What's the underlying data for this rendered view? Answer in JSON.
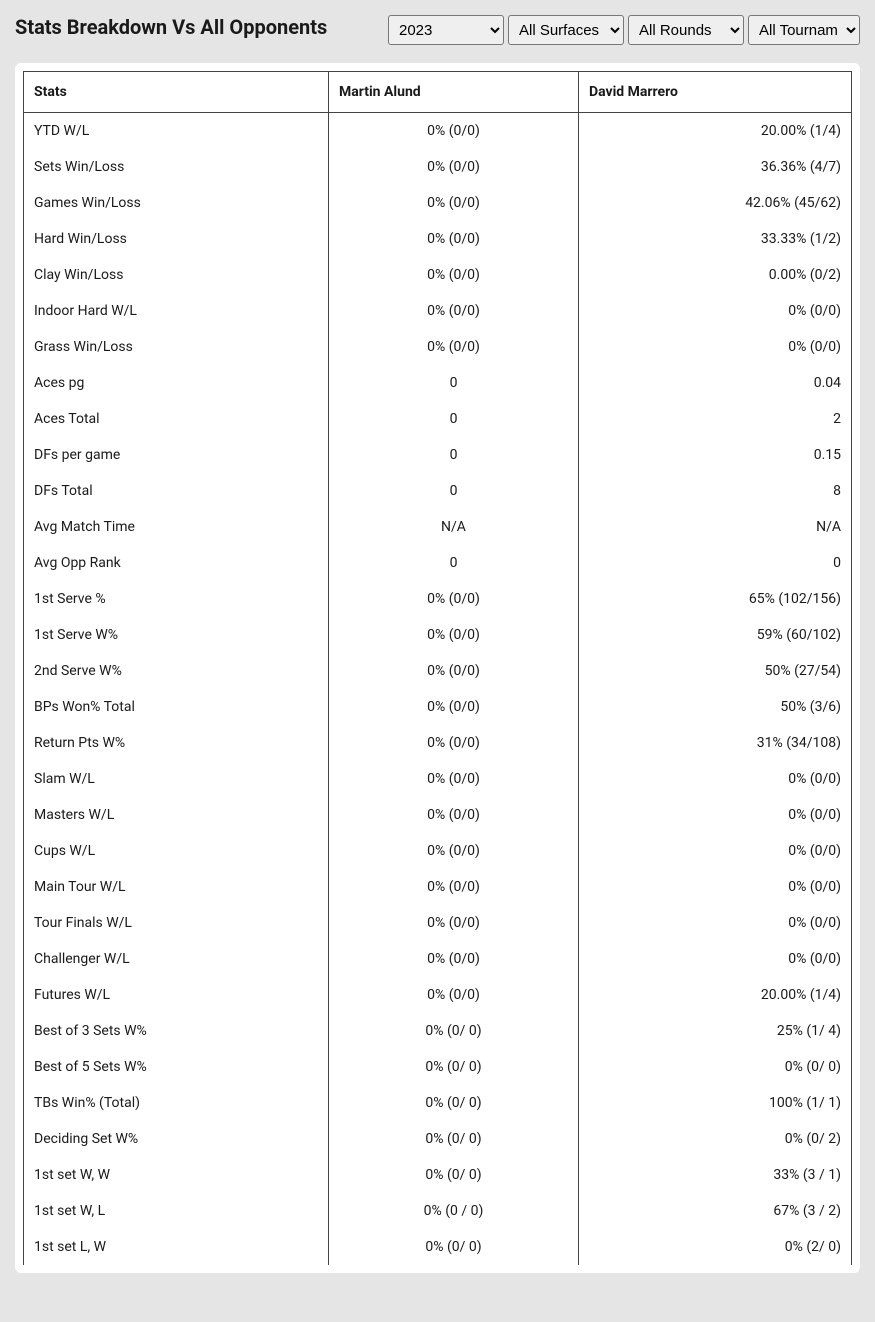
{
  "title": "Stats Breakdown Vs All Opponents",
  "filters": {
    "year": {
      "selected": "2023",
      "options": [
        "2023"
      ]
    },
    "surface": {
      "selected": "All Surfaces",
      "options": [
        "All Surfaces"
      ]
    },
    "round": {
      "selected": "All Rounds",
      "options": [
        "All Rounds"
      ]
    },
    "tournament": {
      "selected": "All Tournaments",
      "options": [
        "All Tournaments"
      ]
    }
  },
  "table": {
    "columns": [
      "Stats",
      "Martin Alund",
      "David Marrero"
    ],
    "col_align": [
      "left",
      "center",
      "right"
    ],
    "header_bg": "#ffffff",
    "border_color": "#444444",
    "rows": [
      [
        "YTD W/L",
        "0% (0/0)",
        "20.00% (1/4)"
      ],
      [
        "Sets Win/Loss",
        "0% (0/0)",
        "36.36% (4/7)"
      ],
      [
        "Games Win/Loss",
        "0% (0/0)",
        "42.06% (45/62)"
      ],
      [
        "Hard Win/Loss",
        "0% (0/0)",
        "33.33% (1/2)"
      ],
      [
        "Clay Win/Loss",
        "0% (0/0)",
        "0.00% (0/2)"
      ],
      [
        "Indoor Hard W/L",
        "0% (0/0)",
        "0% (0/0)"
      ],
      [
        "Grass Win/Loss",
        "0% (0/0)",
        "0% (0/0)"
      ],
      [
        "Aces pg",
        "0",
        "0.04"
      ],
      [
        "Aces Total",
        "0",
        "2"
      ],
      [
        "DFs per game",
        "0",
        "0.15"
      ],
      [
        "DFs Total",
        "0",
        "8"
      ],
      [
        "Avg Match Time",
        "N/A",
        "N/A"
      ],
      [
        "Avg Opp Rank",
        "0",
        "0"
      ],
      [
        "1st Serve %",
        "0% (0/0)",
        "65% (102/156)"
      ],
      [
        "1st Serve W%",
        "0% (0/0)",
        "59% (60/102)"
      ],
      [
        "2nd Serve W%",
        "0% (0/0)",
        "50% (27/54)"
      ],
      [
        "BPs Won% Total",
        "0% (0/0)",
        "50% (3/6)"
      ],
      [
        "Return Pts W%",
        "0% (0/0)",
        "31% (34/108)"
      ],
      [
        "Slam W/L",
        "0% (0/0)",
        "0% (0/0)"
      ],
      [
        "Masters W/L",
        "0% (0/0)",
        "0% (0/0)"
      ],
      [
        "Cups W/L",
        "0% (0/0)",
        "0% (0/0)"
      ],
      [
        "Main Tour W/L",
        "0% (0/0)",
        "0% (0/0)"
      ],
      [
        "Tour Finals W/L",
        "0% (0/0)",
        "0% (0/0)"
      ],
      [
        "Challenger W/L",
        "0% (0/0)",
        "0% (0/0)"
      ],
      [
        "Futures W/L",
        "0% (0/0)",
        "20.00% (1/4)"
      ],
      [
        "Best of 3 Sets W%",
        "0% (0/ 0)",
        "25% (1/ 4)"
      ],
      [
        "Best of 5 Sets W%",
        "0% (0/ 0)",
        "0% (0/ 0)"
      ],
      [
        "TBs Win% (Total)",
        "0% (0/ 0)",
        "100% (1/ 1)"
      ],
      [
        "Deciding Set W%",
        "0% (0/ 0)",
        "0% (0/ 2)"
      ],
      [
        "1st set W, W",
        "0% (0/ 0)",
        "33% (3 / 1)"
      ],
      [
        "1st set W, L",
        "0% (0 / 0)",
        "67% (3 / 2)"
      ],
      [
        "1st set L, W",
        "0% (0/ 0)",
        "0% (2/ 0)"
      ]
    ]
  },
  "colors": {
    "page_bg": "#e5e5e5",
    "card_bg": "#ffffff",
    "text": "#1a1a1a"
  }
}
